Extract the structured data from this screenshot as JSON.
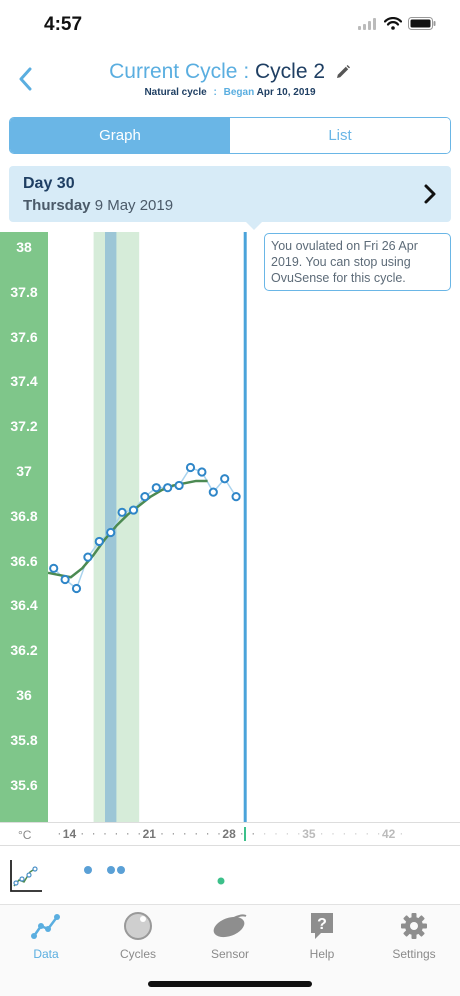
{
  "status": {
    "time": "4:57"
  },
  "header": {
    "title_prefix": "Current Cycle :",
    "title_cycle": "Cycle 2",
    "cycle_type": "Natural cycle",
    "separator": ":",
    "began_label": "Began",
    "began_date": "Apr 10, 2019"
  },
  "segments": {
    "graph": "Graph",
    "list": "List"
  },
  "day_banner": {
    "title": "Day 30",
    "weekday": "Thursday",
    "date": "9 May 2019"
  },
  "tooltip": {
    "text": "You ovulated on Fri 26 Apr 2019. You can stop using OvuSense for this cycle."
  },
  "x_axis": {
    "unit": "°C"
  },
  "chart_data": {
    "type": "line",
    "ylabel": "°C",
    "ylim": [
      35.5,
      38.0
    ],
    "yticks": [
      "38",
      "37.8",
      "37.6",
      "37.4",
      "37.2",
      "37",
      "36.8",
      "36.6",
      "36.4",
      "36.2",
      "36",
      "35.8",
      "35.6"
    ],
    "xticks": [
      "14",
      "21",
      "28",
      "35",
      "42"
    ],
    "xlim": [
      12,
      46
    ],
    "current_day": 30,
    "fertile_window": [
      16,
      20
    ],
    "ovulation_day": 17,
    "series": [
      {
        "kind": "readings",
        "x": [
          12.5,
          13.5,
          14.5,
          15.5,
          16.5,
          17.5,
          18.5,
          19.5,
          20.5,
          21.5,
          22.5,
          23.5,
          24.5,
          25.5,
          26.5,
          27.5,
          28.5
        ],
        "y": [
          36.57,
          36.52,
          36.48,
          36.62,
          36.69,
          36.73,
          36.82,
          36.83,
          36.89,
          36.93,
          36.93,
          36.94,
          37.02,
          37.0,
          36.91,
          36.97,
          36.89
        ]
      },
      {
        "kind": "trend",
        "x": [
          12.0,
          13.0,
          14.0,
          15.0,
          16.0,
          17.0,
          18.0,
          19.0,
          20.0,
          21.0,
          22.0,
          23.0,
          24.0,
          25.0,
          26.0
        ],
        "y": [
          36.55,
          36.54,
          36.53,
          36.57,
          36.63,
          36.7,
          36.76,
          36.81,
          36.85,
          36.89,
          36.92,
          36.94,
          36.95,
          36.96,
          36.96
        ]
      }
    ]
  },
  "tabs": [
    {
      "label": "Data",
      "icon": "data-chart-icon"
    },
    {
      "label": "Cycles",
      "icon": "cycles-icon"
    },
    {
      "label": "Sensor",
      "icon": "sensor-icon"
    },
    {
      "label": "Help",
      "icon": "help-icon"
    },
    {
      "label": "Settings",
      "icon": "settings-icon"
    }
  ],
  "colors": {
    "accent": "#5aaee0",
    "navy": "#1f3f63",
    "axis_green": "#7fc68a",
    "trend_green": "#4c8a52"
  }
}
